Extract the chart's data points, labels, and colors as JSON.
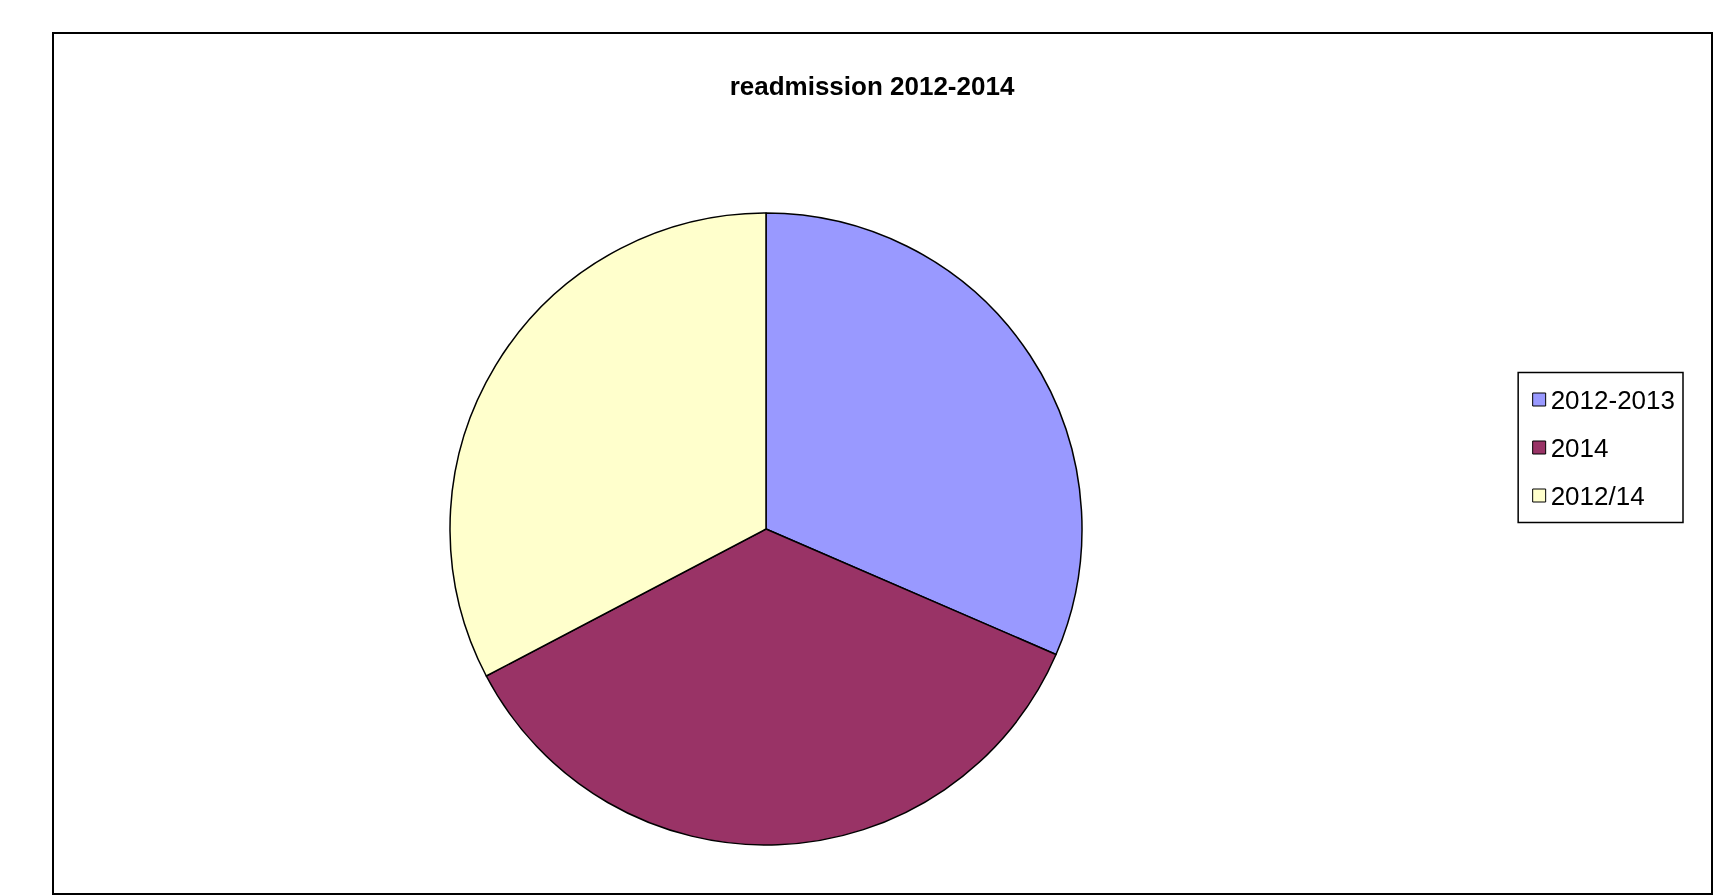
{
  "chart_data": {
    "type": "pie",
    "title": "readmission 2012-2014",
    "categories": [
      "2012-2013",
      "2014",
      "2012/14"
    ],
    "values": [
      31.5,
      35.8,
      32.7
    ],
    "colors": [
      "#9999ff",
      "#993366",
      "#ffffcc"
    ],
    "legend": "right"
  }
}
